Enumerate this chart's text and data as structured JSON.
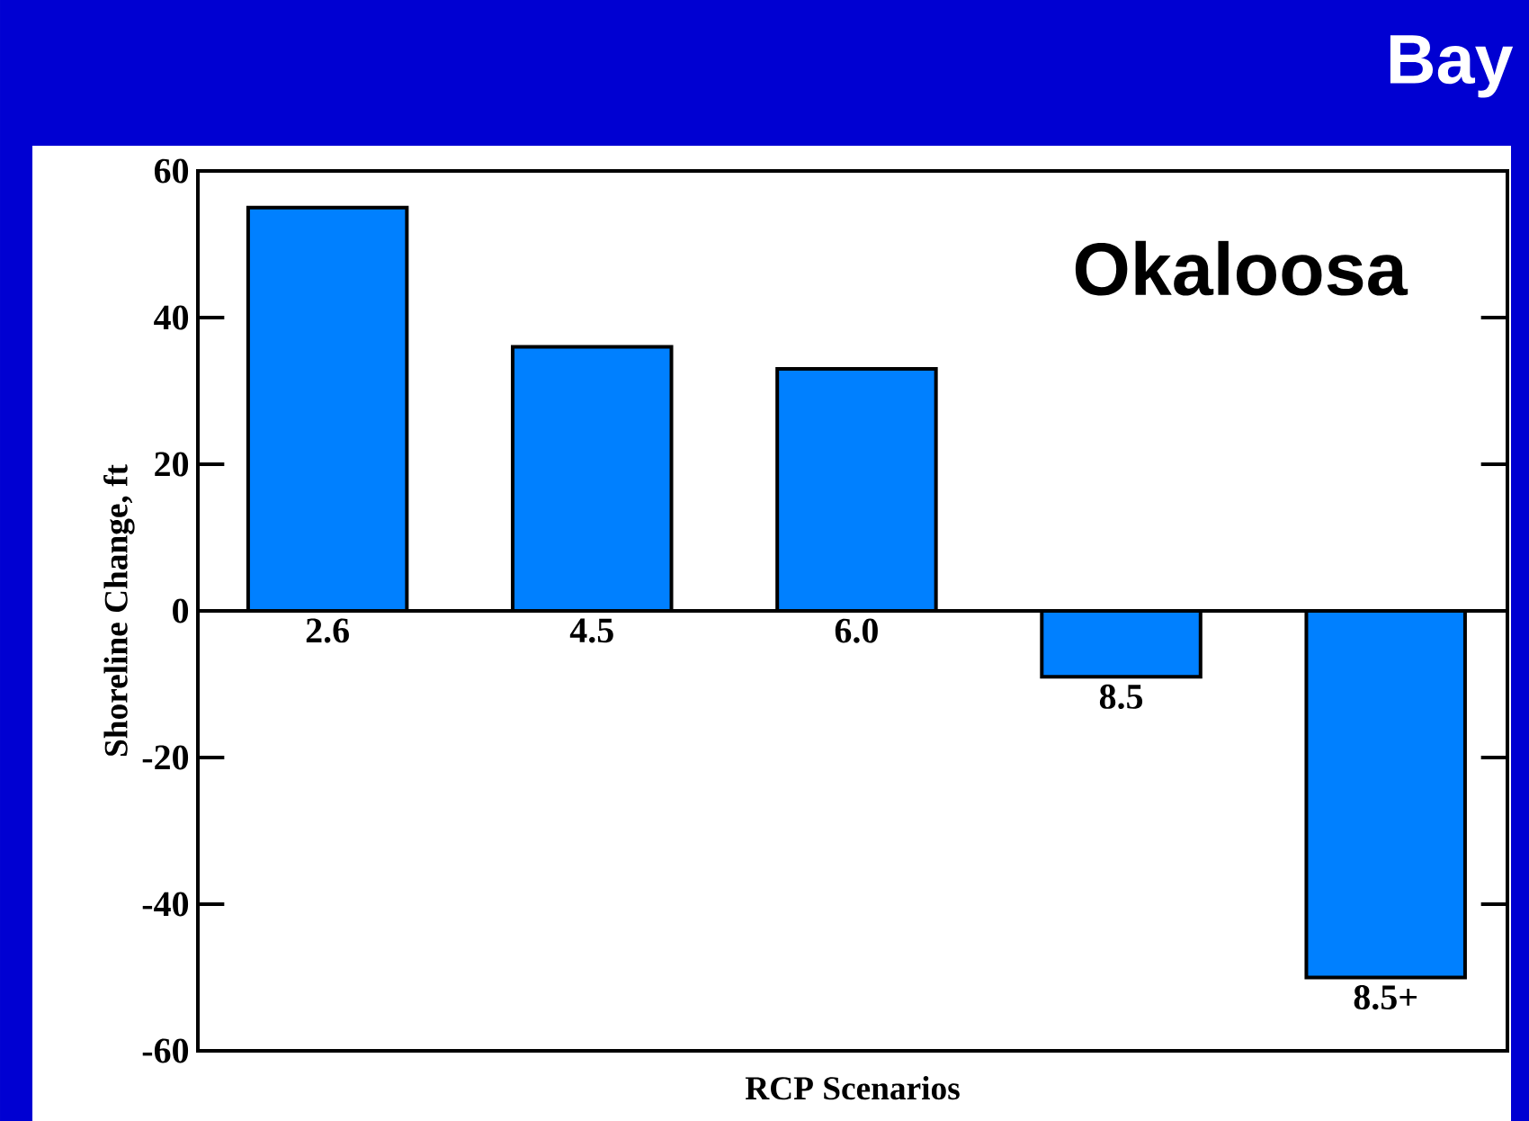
{
  "chart_data": {
    "type": "bar",
    "title": "Bay",
    "xlabel": "RCP Scenarios",
    "ylabel": "Shoreline Change, ft",
    "categories": [
      "2.6",
      "4.5",
      "6.0",
      "8.5",
      "8.5+"
    ],
    "values": [
      55,
      36,
      33,
      -9,
      -50
    ],
    "color": "#0080ff",
    "ylim": [
      -60,
      60
    ],
    "yticks": [
      -60,
      -40,
      -20,
      0,
      20,
      40,
      60
    ],
    "annotations": [
      "Okaloosa"
    ]
  }
}
